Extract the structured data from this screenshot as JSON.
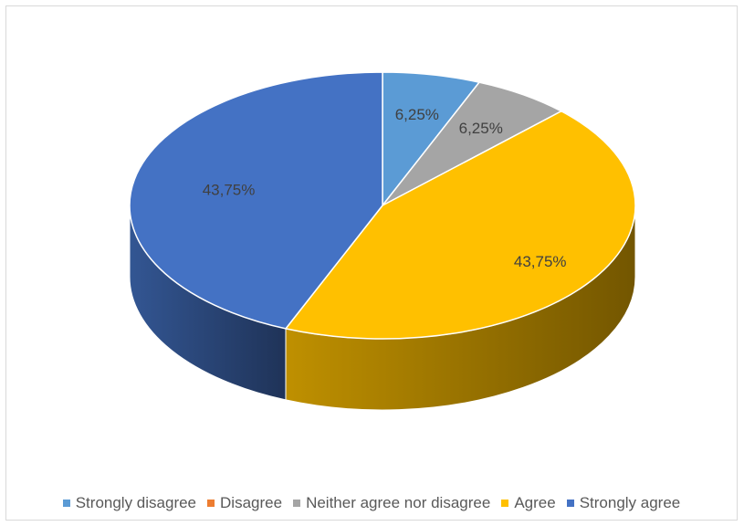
{
  "chart_data": {
    "type": "pie",
    "style": "3d",
    "title": "",
    "categories": [
      "Strongly disagree",
      "Disagree",
      "Neither agree nor disagree",
      "Agree",
      "Strongly agree"
    ],
    "values": [
      6.25,
      0,
      6.25,
      43.75,
      43.75
    ],
    "data_labels": [
      "6,25%",
      "",
      "6,25%",
      "43,75%",
      "43,75%"
    ],
    "colors": [
      "#5B9BD5",
      "#ED7D31",
      "#A5A5A5",
      "#FFC000",
      "#4472C4"
    ],
    "legend_position": "bottom"
  }
}
